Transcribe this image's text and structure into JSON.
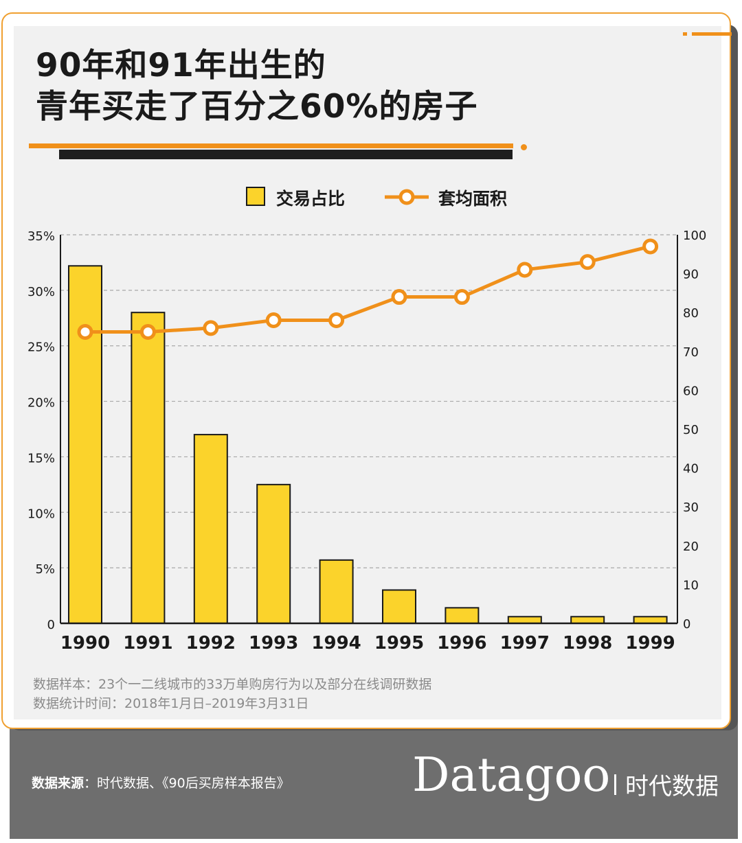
{
  "title": {
    "line1": "90年和91年出生的",
    "line2": "青年买走了百分之60%的房子"
  },
  "legend": {
    "bar_label": "交易占比",
    "line_label": "套均面积"
  },
  "notes": {
    "sample": "数据样本：23个一二线城市的33万单购房行为以及部分在线调研数据",
    "period": "数据统计时间：2018年1月日–2019年3月31日"
  },
  "footer": {
    "source_label": "数据来源",
    "source_text": "：时代数据、《90后买房样本报告》",
    "brand_name": "Datagoo",
    "brand_cn": "时代数据"
  },
  "colors": {
    "bar_fill": "#fbd32b",
    "line": "#f0901a",
    "accent": "#f0901a",
    "footer_bg": "#6e6e6e"
  },
  "chart_data": {
    "type": "bar+line",
    "categories": [
      "1990",
      "1991",
      "1992",
      "1993",
      "1994",
      "1995",
      "1996",
      "1997",
      "1998",
      "1999"
    ],
    "series": [
      {
        "name": "交易占比",
        "type": "bar",
        "axis": "left",
        "unit": "%",
        "values": [
          32.2,
          28.0,
          17.0,
          12.5,
          5.7,
          3.0,
          1.4,
          0.6,
          0.6,
          0.6
        ]
      },
      {
        "name": "套均面积",
        "type": "line",
        "axis": "right",
        "values": [
          75,
          75,
          76,
          78,
          78,
          84,
          84,
          91,
          93,
          97
        ]
      }
    ],
    "y_left": {
      "min": 0,
      "max": 35,
      "ticks": [
        0,
        5,
        10,
        15,
        20,
        25,
        30,
        35
      ],
      "tick_labels": [
        "0",
        "5%",
        "10%",
        "15%",
        "20%",
        "25%",
        "30%",
        "35%"
      ]
    },
    "y_right": {
      "min": 0,
      "max": 100,
      "ticks": [
        0,
        10,
        20,
        30,
        40,
        50,
        60,
        70,
        80,
        90,
        100
      ],
      "tick_labels": [
        "0",
        "10",
        "20",
        "30",
        "40",
        "50",
        "60",
        "70",
        "80",
        "90",
        "100"
      ]
    },
    "grid": "horizontal dashed",
    "legend_position": "top-center"
  }
}
